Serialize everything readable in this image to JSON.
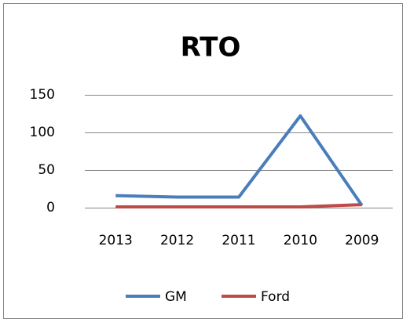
{
  "chart_data": {
    "type": "line",
    "title": "RTO",
    "categories": [
      "2013",
      "2012",
      "2011",
      "2010",
      "2009"
    ],
    "series": [
      {
        "name": "GM",
        "color": "#4a7ebb",
        "values": [
          16,
          14,
          14,
          122,
          3
        ]
      },
      {
        "name": "Ford",
        "color": "#be4b48",
        "values": [
          1,
          1,
          1,
          1,
          4
        ]
      }
    ],
    "ylim": [
      0,
      150
    ],
    "yticks": [
      0,
      50,
      100,
      150
    ],
    "grid": true,
    "legend": "bottom"
  }
}
